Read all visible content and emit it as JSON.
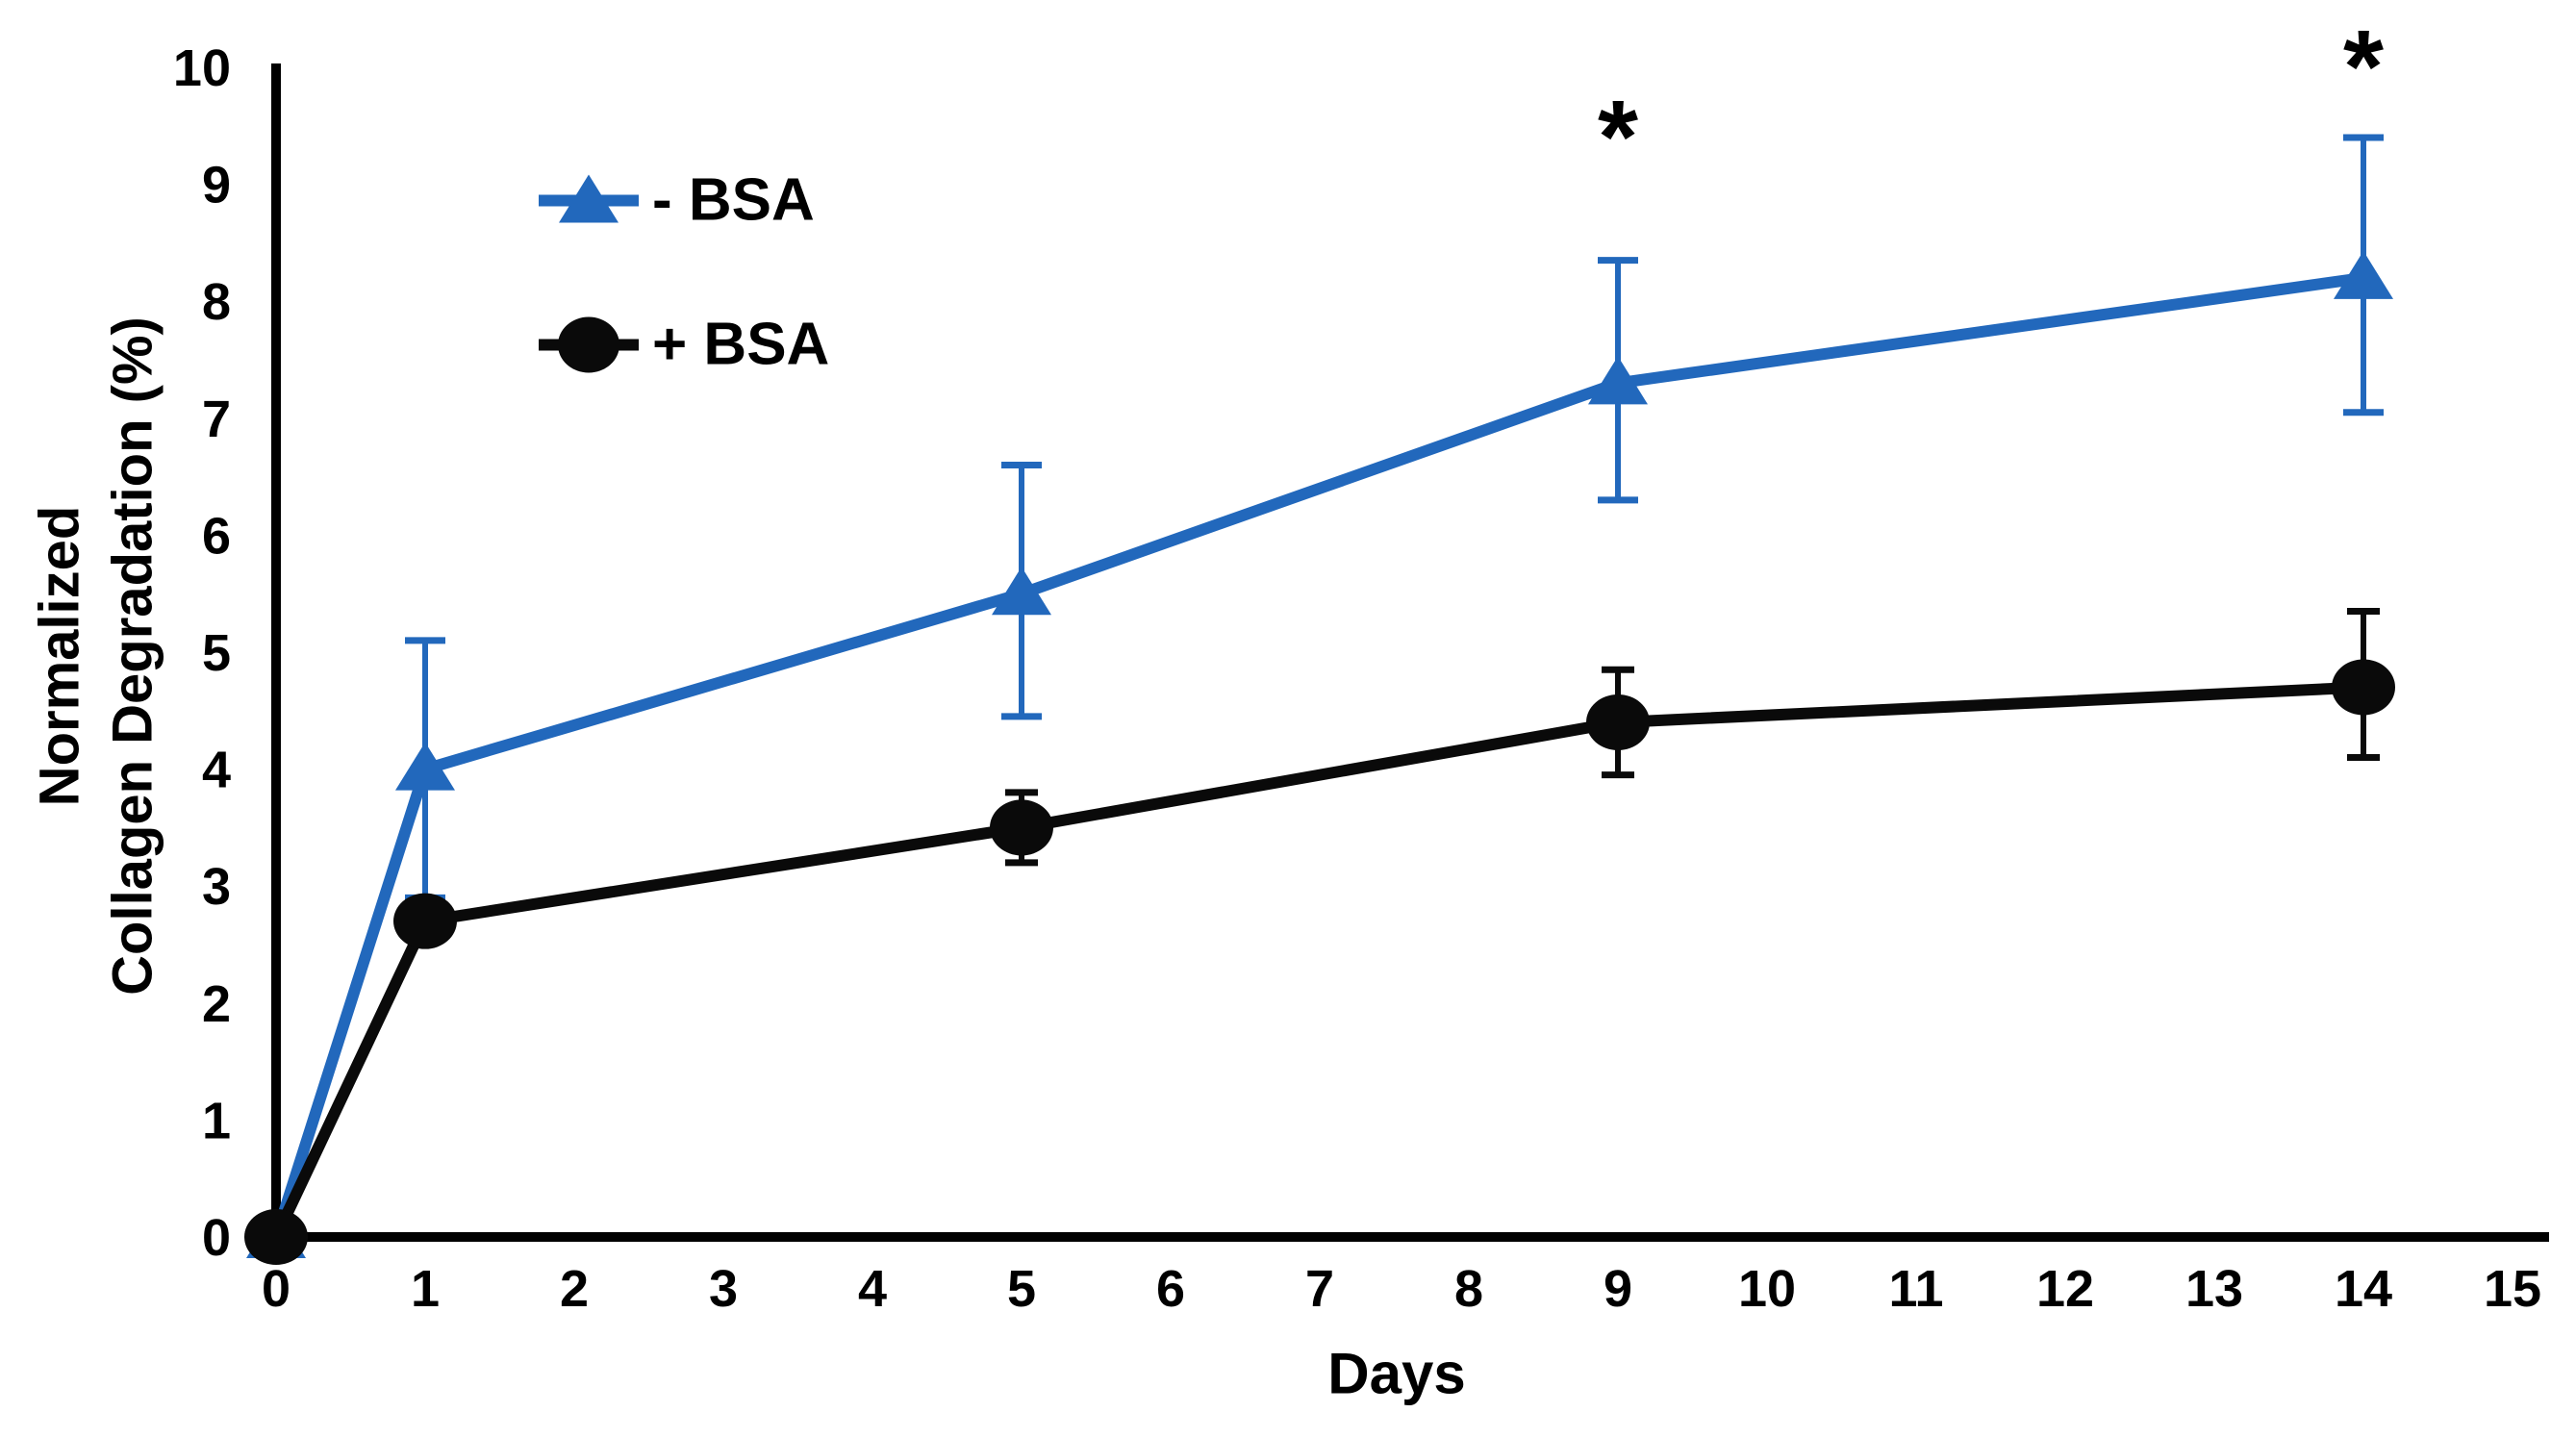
{
  "figure": {
    "y_axis_title_line1": "Normalized",
    "y_axis_title_line2": "Collagen Degradation (%)",
    "x_axis_title": "Days"
  },
  "legend": {
    "items": [
      {
        "label": "- BSA",
        "marker": "triangle",
        "color": "#2268BC"
      },
      {
        "label": "+ BSA",
        "marker": "circle",
        "color": "#0A0A0A"
      }
    ]
  },
  "colors": {
    "series_minus_bsa": "#2268BC",
    "series_plus_bsa": "#0A0A0A",
    "axis": "#000000",
    "text": "#000000",
    "background": "#FFFFFF"
  },
  "chart_data": {
    "type": "line",
    "title": "",
    "xlabel": "Days",
    "ylabel": "Normalized Collagen Degradation (%)",
    "x": [
      0,
      1,
      5,
      9,
      14
    ],
    "series": [
      {
        "name": "- BSA",
        "color": "#2268BC",
        "marker": "triangle",
        "values": [
          0,
          4.0,
          5.5,
          7.3,
          8.2
        ],
        "err_up": [
          0,
          1.1,
          1.1,
          1.05,
          1.2
        ],
        "err_down": [
          0,
          1.1,
          1.05,
          1.0,
          1.15
        ]
      },
      {
        "name": "+ BSA",
        "color": "#0A0A0A",
        "marker": "circle",
        "values": [
          0,
          2.7,
          3.5,
          4.4,
          4.7
        ],
        "err_up": [
          0,
          0,
          0.3,
          0.45,
          0.65
        ],
        "err_down": [
          0,
          0,
          0.3,
          0.45,
          0.6
        ]
      }
    ],
    "x_ticks": [
      0,
      1,
      2,
      3,
      4,
      5,
      6,
      7,
      8,
      9,
      10,
      11,
      12,
      13,
      14,
      15
    ],
    "y_ticks": [
      0,
      1,
      2,
      3,
      4,
      5,
      6,
      7,
      8,
      9,
      10
    ],
    "xlim": [
      0,
      15
    ],
    "ylim": [
      0,
      10
    ],
    "grid": false,
    "legend_position": "inside-upper-left",
    "annotations": [
      {
        "x": 9,
        "y": 9.35,
        "text": "*"
      },
      {
        "x": 14,
        "y": 9.95,
        "text": "*"
      }
    ]
  }
}
